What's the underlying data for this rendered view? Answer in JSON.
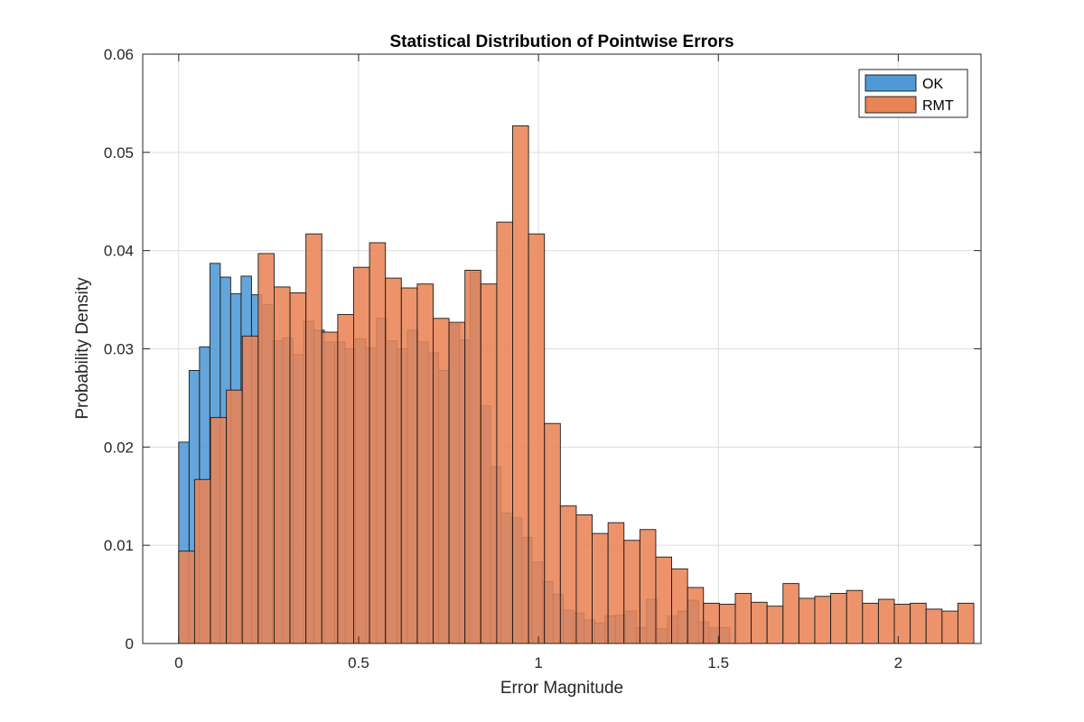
{
  "chart_data": {
    "type": "bar",
    "title": "Statistical Distribution of Pointwise Errors",
    "xlabel": "Error Magnitude",
    "ylabel": "Probability Density",
    "xlim": [
      -0.1,
      2.23
    ],
    "ylim": [
      0,
      0.06
    ],
    "x_ticks": [
      0,
      0.5,
      1,
      1.5,
      2
    ],
    "x_tick_labels": [
      "0",
      "0.5",
      "1",
      "1.5",
      "2"
    ],
    "y_ticks": [
      0,
      0.01,
      0.02,
      0.03,
      0.04,
      0.05,
      0.06
    ],
    "y_tick_labels": [
      "0",
      "0.01",
      "0.02",
      "0.03",
      "0.04",
      "0.05",
      "0.06"
    ],
    "grid": true,
    "legend_position": "top-right",
    "series": [
      {
        "name": "OK",
        "color": "#4f9ad6",
        "bin_start": 0,
        "bin_width": 0.0289,
        "values": [
          0.0205,
          0.0278,
          0.0302,
          0.0387,
          0.0373,
          0.0356,
          0.0374,
          0.0355,
          0.0345,
          0.0308,
          0.0311,
          0.0294,
          0.0328,
          0.0319,
          0.0307,
          0.0307,
          0.03,
          0.031,
          0.0301,
          0.0331,
          0.0308,
          0.03,
          0.0319,
          0.0307,
          0.0296,
          0.0278,
          0.0325,
          0.0309,
          0.0378,
          0.0242,
          0.018,
          0.0133,
          0.0128,
          0.0108,
          0.0083,
          0.0063,
          0.005,
          0.0034,
          0.0031,
          0.0024,
          0.0021,
          0.0028,
          0.0029,
          0.0033,
          0.0016,
          0.0045,
          0.0015,
          0.0028,
          0.0033,
          0.0044,
          0.0022,
          0.0016,
          0.0016
        ]
      },
      {
        "name": "RMT",
        "color": "#e98456",
        "bin_start": 0,
        "bin_width": 0.0442,
        "values": [
          0.0094,
          0.0167,
          0.023,
          0.0258,
          0.0313,
          0.0397,
          0.0363,
          0.0357,
          0.0417,
          0.0317,
          0.0335,
          0.0383,
          0.0408,
          0.0372,
          0.0362,
          0.0366,
          0.0331,
          0.0327,
          0.038,
          0.0366,
          0.0429,
          0.0527,
          0.0417,
          0.0224,
          0.014,
          0.0131,
          0.0112,
          0.0123,
          0.0105,
          0.0116,
          0.0088,
          0.0076,
          0.0057,
          0.0041,
          0.004,
          0.0051,
          0.0042,
          0.0038,
          0.0061,
          0.0046,
          0.0048,
          0.0051,
          0.0054,
          0.0041,
          0.0045,
          0.004,
          0.0041,
          0.0035,
          0.0033,
          0.0041
        ]
      }
    ]
  }
}
